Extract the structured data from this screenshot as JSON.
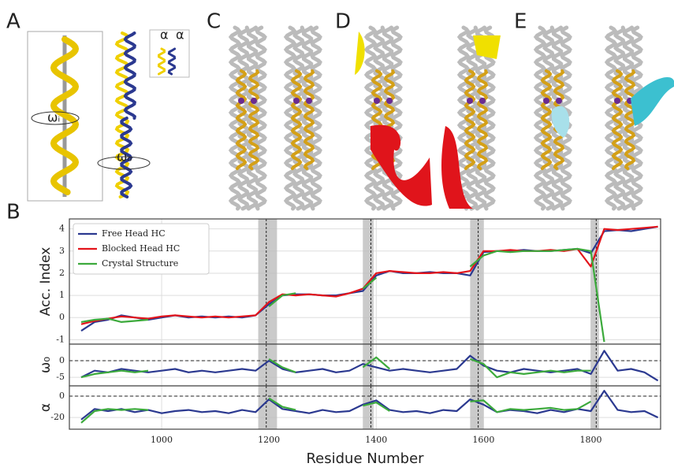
{
  "panels": [
    "A",
    "B",
    "C",
    "D",
    "E"
  ],
  "panel_a_labels": [
    "ωᵢ",
    "ωₒ",
    "α",
    "α"
  ],
  "chart_data": [
    {
      "type": "line",
      "ylabel": "Acc. Index",
      "x": [
        850,
        875,
        900,
        925,
        950,
        975,
        1000,
        1025,
        1050,
        1075,
        1100,
        1125,
        1150,
        1175,
        1200,
        1225,
        1250,
        1275,
        1300,
        1325,
        1350,
        1375,
        1400,
        1425,
        1450,
        1475,
        1500,
        1525,
        1550,
        1575,
        1600,
        1625,
        1650,
        1675,
        1700,
        1725,
        1750,
        1775,
        1800,
        1825,
        1850,
        1875,
        1900,
        1925
      ],
      "series": [
        {
          "name": "Free Head HC",
          "color": "#2b3990",
          "values": [
            -0.6,
            -0.2,
            -0.1,
            0.1,
            0.0,
            -0.1,
            0.0,
            0.1,
            0.0,
            0.05,
            0.0,
            0.05,
            0.0,
            0.1,
            0.6,
            1.0,
            1.05,
            1.05,
            1.0,
            1.0,
            1.1,
            1.2,
            1.9,
            2.1,
            2.0,
            2.0,
            2.05,
            2.0,
            2.0,
            1.9,
            2.95,
            3.0,
            3.0,
            3.05,
            3.0,
            3.0,
            3.05,
            3.1,
            2.9,
            3.9,
            3.95,
            3.9,
            4.0,
            4.1
          ]
        },
        {
          "name": "Blocked Head HC",
          "color": "#e3141b",
          "values": [
            -0.3,
            -0.15,
            -0.05,
            0.05,
            0.0,
            -0.05,
            0.05,
            0.1,
            0.05,
            0.0,
            0.05,
            0.0,
            0.05,
            0.1,
            0.7,
            1.05,
            1.0,
            1.05,
            1.0,
            0.95,
            1.1,
            1.3,
            2.0,
            2.1,
            2.05,
            2.0,
            2.0,
            2.05,
            2.0,
            2.1,
            3.0,
            3.0,
            3.05,
            3.0,
            3.0,
            3.05,
            3.0,
            3.1,
            2.3,
            4.0,
            3.95,
            4.0,
            4.05,
            4.1
          ]
        },
        {
          "name": "Crystal Structure",
          "color": "#3caa3c",
          "values": [
            -0.2,
            -0.1,
            -0.05,
            -0.2,
            -0.15,
            -0.1,
            null,
            null,
            null,
            null,
            null,
            null,
            null,
            null,
            0.5,
            1.0,
            1.1,
            null,
            null,
            null,
            null,
            1.3,
            1.8,
            null,
            null,
            null,
            null,
            null,
            null,
            2.3,
            2.8,
            3.0,
            2.95,
            3.0,
            3.0,
            3.0,
            3.05,
            3.1,
            3.0,
            -1.1,
            null,
            null,
            null,
            null
          ]
        }
      ],
      "xlim": [
        828,
        1930
      ],
      "ylim": [
        -1.2,
        4.45
      ],
      "xticks": [
        1000,
        1200,
        1400,
        1600,
        1800
      ],
      "yticks": [
        -1,
        0,
        1,
        2,
        3,
        4
      ],
      "grid": true,
      "legend": "upper left",
      "vspans": [
        [
          1180,
          1215
        ],
        [
          1375,
          1395
        ],
        [
          1575,
          1600
        ],
        [
          1800,
          1815
        ]
      ],
      "vlines": [
        1195,
        1390,
        1590,
        1810
      ]
    },
    {
      "type": "line",
      "ylabel": "ω₀",
      "x": [
        850,
        875,
        900,
        925,
        950,
        975,
        1000,
        1025,
        1050,
        1075,
        1100,
        1125,
        1150,
        1175,
        1200,
        1225,
        1250,
        1275,
        1300,
        1325,
        1350,
        1375,
        1400,
        1425,
        1450,
        1475,
        1500,
        1525,
        1550,
        1575,
        1600,
        1625,
        1650,
        1675,
        1700,
        1725,
        1750,
        1775,
        1800,
        1825,
        1850,
        1875,
        1900,
        1925
      ],
      "series": [
        {
          "name": "Free Head HC",
          "color": "#2b3990",
          "values": [
            -5,
            -3,
            -3.5,
            -2.5,
            -3,
            -3.5,
            -3,
            -2.5,
            -3.5,
            -3,
            -3.5,
            -3,
            -2.5,
            -3,
            0,
            -2.5,
            -3.5,
            -3,
            -2.5,
            -3.5,
            -3,
            -1,
            -2,
            -3,
            -2.5,
            -3,
            -3.5,
            -3,
            -2.5,
            1.5,
            -1.5,
            -3,
            -3.5,
            -2.5,
            -3,
            -3.5,
            -3,
            -2.5,
            -4,
            3,
            -3,
            -2.5,
            -3.5,
            -6
          ]
        },
        {
          "name": "Crystal Structure",
          "color": "#3caa3c",
          "values": [
            -5,
            -4,
            -3.5,
            -3,
            -3.5,
            -3,
            null,
            null,
            null,
            null,
            null,
            null,
            null,
            null,
            0.5,
            -2,
            -3.5,
            null,
            null,
            null,
            null,
            -2,
            1,
            -2.5,
            null,
            null,
            null,
            null,
            null,
            0.5,
            -1,
            -5,
            -3.5,
            -4,
            -3.5,
            -3,
            -3.5,
            -3,
            -3,
            null,
            null,
            null,
            null,
            null
          ]
        }
      ],
      "xlim": [
        828,
        1930
      ],
      "ylim": [
        -7.6,
        5
      ],
      "xticks": [
        1000,
        1200,
        1400,
        1600,
        1800
      ],
      "yticks": [
        -5,
        0
      ],
      "grid": true,
      "hline": 0,
      "vspans": [
        [
          1180,
          1215
        ],
        [
          1375,
          1395
        ],
        [
          1575,
          1600
        ],
        [
          1800,
          1815
        ]
      ],
      "vlines": [
        1195,
        1390,
        1590,
        1810
      ]
    },
    {
      "type": "line",
      "ylabel": "α",
      "xlabel": "Residue Number",
      "x": [
        850,
        875,
        900,
        925,
        950,
        975,
        1000,
        1025,
        1050,
        1075,
        1100,
        1125,
        1150,
        1175,
        1200,
        1225,
        1250,
        1275,
        1300,
        1325,
        1350,
        1375,
        1400,
        1425,
        1450,
        1475,
        1500,
        1525,
        1550,
        1575,
        1600,
        1625,
        1650,
        1675,
        1700,
        1725,
        1750,
        1775,
        1800,
        1825,
        1850,
        1875,
        1900,
        1925
      ],
      "series": [
        {
          "name": "Free Head HC",
          "color": "#2b3990",
          "values": [
            -22,
            -12,
            -14,
            -12,
            -15,
            -13,
            -16,
            -14,
            -13,
            -15,
            -14,
            -16,
            -13,
            -15,
            -3,
            -12,
            -14,
            -16,
            -13,
            -15,
            -14,
            -8,
            -4,
            -13,
            -15,
            -14,
            -16,
            -13,
            -14,
            -3,
            -8,
            -15,
            -13,
            -14,
            -16,
            -13,
            -15,
            -12,
            -14,
            5,
            -13,
            -15,
            -14,
            -20
          ]
        },
        {
          "name": "Crystal Structure",
          "color": "#3caa3c",
          "values": [
            -25,
            -14,
            -12,
            -13,
            -12,
            -13,
            null,
            null,
            null,
            null,
            null,
            null,
            null,
            null,
            -2,
            -10,
            -13,
            null,
            null,
            null,
            null,
            -9,
            -6,
            -14,
            null,
            null,
            null,
            null,
            null,
            -5,
            -4,
            -15,
            -12,
            -13,
            -12,
            -11,
            -13,
            -12,
            -5,
            null,
            null,
            null,
            null,
            null
          ]
        }
      ],
      "xlim": [
        828,
        1930
      ],
      "ylim": [
        -31,
        9.6
      ],
      "xticks": [
        1000,
        1200,
        1400,
        1600,
        1800
      ],
      "yticks": [
        -20,
        0
      ],
      "grid": true,
      "hline": 0,
      "vspans": [
        [
          1180,
          1215
        ],
        [
          1375,
          1395
        ],
        [
          1575,
          1600
        ],
        [
          1800,
          1815
        ]
      ],
      "vlines": [
        1195,
        1390,
        1590,
        1810
      ]
    }
  ]
}
